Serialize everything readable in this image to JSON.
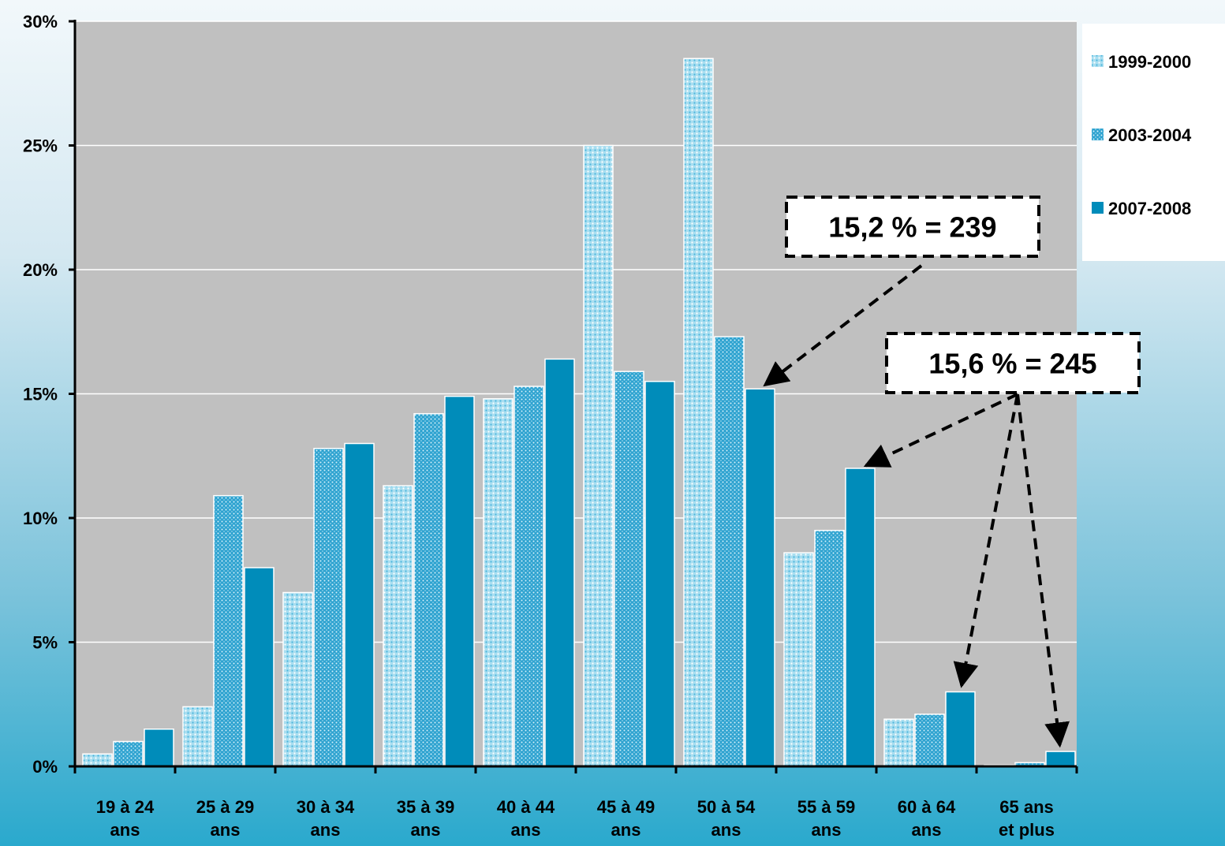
{
  "chart_data": {
    "type": "bar",
    "categories": [
      [
        "19 à 24",
        "ans"
      ],
      [
        "25 à 29",
        "ans"
      ],
      [
        "30 à 34",
        "ans"
      ],
      [
        "35 à 39",
        "ans"
      ],
      [
        "40 à 44",
        "ans"
      ],
      [
        "45 à 49",
        "ans"
      ],
      [
        "50 à 54",
        "ans"
      ],
      [
        "55 à 59",
        "ans"
      ],
      [
        "60 à 64",
        "ans"
      ],
      [
        "65 ans",
        "et plus"
      ]
    ],
    "series": [
      {
        "name": "1999-2000",
        "color": "#7fcbe6",
        "pattern": "dots-light",
        "values": [
          0.5,
          2.4,
          7.0,
          11.3,
          14.8,
          25.0,
          28.5,
          8.6,
          1.9,
          0.05
        ]
      },
      {
        "name": "2003-2004",
        "color": "#3aa8d4",
        "pattern": "dots-dense",
        "values": [
          1.0,
          10.9,
          12.8,
          14.2,
          15.3,
          15.9,
          17.3,
          9.5,
          2.1,
          0.15
        ]
      },
      {
        "name": "2007-2008",
        "color": "#008cba",
        "pattern": "solid",
        "values": [
          1.5,
          8.0,
          13.0,
          14.9,
          16.4,
          15.5,
          15.2,
          12.0,
          3.0,
          0.6
        ]
      }
    ],
    "ylim": [
      0,
      30
    ],
    "yticks": [
      "0%",
      "5%",
      "10%",
      "15%",
      "20%",
      "25%",
      "30%"
    ],
    "grid": true,
    "legend_position": "right",
    "plot_background": "#c0c0c0",
    "annotations": [
      {
        "text": "15,2 % = 239",
        "points_to": [
          [
            "50 à 54",
            "2007-2008"
          ]
        ]
      },
      {
        "text": "15,6 % = 245",
        "points_to": [
          [
            "55 à 59",
            "2007-2008"
          ],
          [
            "60 à 64",
            "2007-2008"
          ],
          [
            "65 ans",
            "2007-2008"
          ]
        ]
      }
    ]
  }
}
